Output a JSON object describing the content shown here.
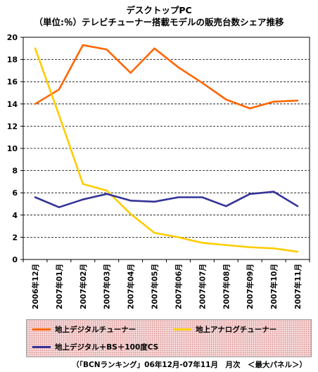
{
  "chart_data": {
    "type": "line",
    "title": "デスクトップPC",
    "subtitle": "（単位:％）テレビチューナー搭載モデルの販売台数シェア推移",
    "source": "（「BCNランキング」06年12月-07年11月　月次　＜最大パネル＞）",
    "ylim": [
      0,
      20
    ],
    "yticks": [
      0,
      2,
      4,
      6,
      8,
      10,
      12,
      14,
      16,
      18,
      20
    ],
    "grid": true,
    "legend_position": "bottom",
    "categories": [
      "2006年12月",
      "2007年01月",
      "2007年02月",
      "2007年03月",
      "2007年04月",
      "2007年05月",
      "2007年06月",
      "2007年07月",
      "2007年08月",
      "2007年09月",
      "2007年10月",
      "2007年11月"
    ],
    "series": [
      {
        "name": "地上デジタルチューナー",
        "color": "#ff6600",
        "values": [
          14.0,
          15.3,
          19.3,
          18.9,
          16.8,
          19.0,
          17.3,
          15.9,
          14.4,
          13.6,
          14.2,
          14.3
        ]
      },
      {
        "name": "地上アナログチューナー",
        "color": "#ffcc00",
        "values": [
          19.0,
          13.0,
          6.8,
          6.2,
          4.1,
          2.4,
          2.0,
          1.5,
          1.3,
          1.1,
          1.0,
          0.7
        ]
      },
      {
        "name": "地上デジタル＋BS＋100度CS",
        "color": "#333399",
        "values": [
          5.6,
          4.7,
          5.4,
          5.9,
          5.3,
          5.2,
          5.6,
          5.6,
          4.8,
          5.9,
          6.1,
          4.8
        ]
      }
    ]
  }
}
